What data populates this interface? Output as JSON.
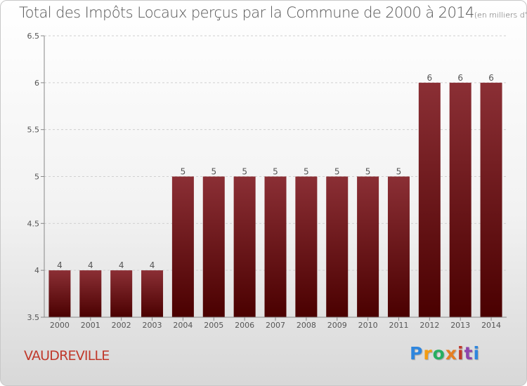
{
  "title": "Total des Impôts Locaux perçus par la Commune de 2000 à 2014",
  "title_unit": "(en milliers d'€)",
  "commune": "VAUDREVILLE",
  "logo_text": "Proxiti",
  "logo_letters": [
    {
      "ch": "P",
      "color": "#2e86de"
    },
    {
      "ch": "r",
      "color": "#f39c12"
    },
    {
      "ch": "o",
      "color": "#27ae60"
    },
    {
      "ch": "x",
      "color": "#e67e22"
    },
    {
      "ch": "i",
      "color": "#c0392b"
    },
    {
      "ch": "t",
      "color": "#8e44ad"
    },
    {
      "ch": "i",
      "color": "#2e86de"
    }
  ],
  "colors": {
    "bar_top": "#8b2f35",
    "bar_bottom": "#4a0000",
    "axis": "#888888",
    "grid": "#d0d0d0"
  },
  "chart_data": {
    "type": "bar",
    "title": "Total des Impôts Locaux perçus par la Commune de 2000 à 2014 (en milliers d'€)",
    "xlabel": "",
    "ylabel": "",
    "categories": [
      "2000",
      "2001",
      "2002",
      "2003",
      "2004",
      "2005",
      "2006",
      "2007",
      "2008",
      "2009",
      "2010",
      "2011",
      "2012",
      "2013",
      "2014"
    ],
    "values": [
      4,
      4,
      4,
      4,
      5,
      5,
      5,
      5,
      5,
      5,
      5,
      5,
      6,
      6,
      6
    ],
    "value_labels": [
      "4",
      "4",
      "4",
      "4",
      "5",
      "5",
      "5",
      "5",
      "5",
      "5",
      "5",
      "5",
      "6",
      "6",
      "6"
    ],
    "ylim": [
      3.5,
      6.5
    ],
    "yticks": [
      3.5,
      4,
      4.5,
      5,
      5.5,
      6,
      6.5
    ],
    "ytick_labels": [
      "3.5",
      "4",
      "4.5",
      "5",
      "5.5",
      "6",
      "6.5"
    ]
  }
}
